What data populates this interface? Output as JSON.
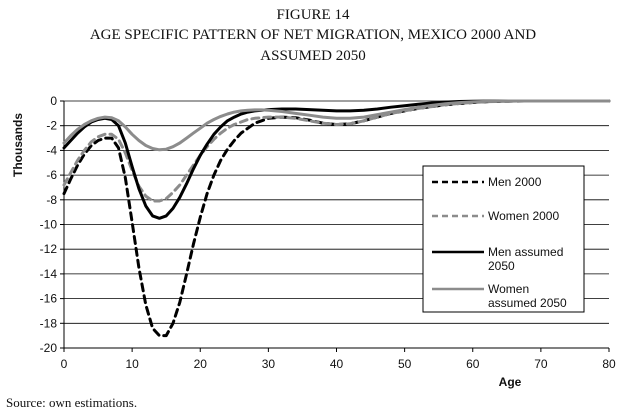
{
  "figure": {
    "label": "FIGURE 14",
    "title_line1": "AGE SPECIFIC PATTERN OF NET MIGRATION, MEXICO 2000 AND",
    "title_line2": "ASSUMED 2050",
    "source": "Source: own estimations."
  },
  "chart_data": {
    "type": "line",
    "title": "AGE SPECIFIC PATTERN OF NET MIGRATION, MEXICO 2000 AND ASSUMED 2050",
    "xlabel": "Age",
    "ylabel": "Thousands",
    "xlim": [
      0,
      80
    ],
    "ylim": [
      -20,
      0
    ],
    "xticks": [
      0,
      10,
      20,
      30,
      40,
      50,
      60,
      70,
      80
    ],
    "yticks": [
      0,
      -2,
      -4,
      -6,
      -8,
      -10,
      -12,
      -14,
      -16,
      -18,
      -20
    ],
    "grid": "horizontal",
    "legend_position": "right",
    "x": [
      0,
      1,
      2,
      3,
      4,
      5,
      6,
      7,
      8,
      9,
      10,
      11,
      12,
      13,
      14,
      15,
      16,
      17,
      18,
      19,
      20,
      21,
      22,
      23,
      24,
      25,
      26,
      27,
      28,
      29,
      30,
      32,
      34,
      36,
      38,
      40,
      42,
      44,
      46,
      48,
      50,
      52,
      54,
      56,
      58,
      60,
      62,
      64,
      66,
      68,
      70,
      72,
      74,
      76,
      78,
      80
    ],
    "series": [
      {
        "name": "Men 2000",
        "color": "#000000",
        "dash": "dashed",
        "values": [
          -7.5,
          -6.3,
          -5.2,
          -4.3,
          -3.6,
          -3.2,
          -3.0,
          -3.0,
          -3.8,
          -6.2,
          -9.8,
          -13.5,
          -16.5,
          -18.4,
          -19.0,
          -19.0,
          -18.0,
          -16.3,
          -14.0,
          -11.6,
          -9.4,
          -7.5,
          -6.0,
          -4.8,
          -3.9,
          -3.2,
          -2.6,
          -2.2,
          -1.8,
          -1.6,
          -1.4,
          -1.3,
          -1.35,
          -1.55,
          -1.8,
          -1.9,
          -1.85,
          -1.6,
          -1.3,
          -1.0,
          -0.8,
          -0.6,
          -0.45,
          -0.3,
          -0.2,
          -0.12,
          -0.06,
          -0.03,
          -0.01,
          0,
          0,
          0,
          0,
          0,
          0,
          0
        ]
      },
      {
        "name": "Women 2000",
        "color": "#8c8c8c",
        "dash": "dashed",
        "values": [
          -6.8,
          -5.8,
          -4.8,
          -4.0,
          -3.3,
          -2.9,
          -2.7,
          -2.7,
          -3.1,
          -4.2,
          -5.6,
          -6.9,
          -7.7,
          -8.1,
          -8.1,
          -7.9,
          -7.4,
          -6.8,
          -6.0,
          -5.2,
          -4.4,
          -3.7,
          -3.1,
          -2.6,
          -2.2,
          -1.9,
          -1.7,
          -1.5,
          -1.4,
          -1.35,
          -1.3,
          -1.3,
          -1.4,
          -1.6,
          -1.8,
          -1.9,
          -1.85,
          -1.6,
          -1.3,
          -1.0,
          -0.8,
          -0.6,
          -0.45,
          -0.3,
          -0.2,
          -0.12,
          -0.06,
          -0.03,
          -0.01,
          0,
          0,
          0,
          0,
          0,
          0,
          0
        ]
      },
      {
        "name": "Men assumed 2050",
        "color": "#000000",
        "dash": "solid",
        "values": [
          -3.8,
          -3.2,
          -2.6,
          -2.1,
          -1.7,
          -1.5,
          -1.4,
          -1.5,
          -2.0,
          -3.4,
          -5.3,
          -7.1,
          -8.5,
          -9.3,
          -9.5,
          -9.3,
          -8.7,
          -7.8,
          -6.7,
          -5.5,
          -4.4,
          -3.5,
          -2.7,
          -2.1,
          -1.6,
          -1.3,
          -1.05,
          -0.9,
          -0.8,
          -0.75,
          -0.7,
          -0.65,
          -0.65,
          -0.7,
          -0.75,
          -0.8,
          -0.8,
          -0.75,
          -0.65,
          -0.5,
          -0.38,
          -0.26,
          -0.16,
          -0.09,
          -0.04,
          -0.02,
          -0.01,
          0,
          0,
          0,
          0,
          0,
          0,
          0,
          0,
          0
        ]
      },
      {
        "name": "Women assumed 2050",
        "color": "#8c8c8c",
        "dash": "solid",
        "values": [
          -3.4,
          -2.8,
          -2.3,
          -1.9,
          -1.6,
          -1.4,
          -1.3,
          -1.35,
          -1.6,
          -2.1,
          -2.7,
          -3.2,
          -3.6,
          -3.85,
          -3.95,
          -3.9,
          -3.7,
          -3.4,
          -3.0,
          -2.6,
          -2.2,
          -1.8,
          -1.5,
          -1.25,
          -1.05,
          -0.9,
          -0.8,
          -0.75,
          -0.72,
          -0.72,
          -0.75,
          -0.85,
          -1.0,
          -1.15,
          -1.3,
          -1.4,
          -1.4,
          -1.3,
          -1.1,
          -0.9,
          -0.7,
          -0.5,
          -0.35,
          -0.22,
          -0.13,
          -0.07,
          -0.03,
          -0.01,
          0,
          0,
          0,
          0,
          0,
          0,
          0,
          0
        ]
      }
    ],
    "legend": {
      "men2000": "Men 2000",
      "women2000": "Women 2000",
      "men2050_l1": "Men assumed",
      "men2050_l2": "2050",
      "women2050_l1": "Women",
      "women2050_l2": "assumed 2050"
    }
  }
}
